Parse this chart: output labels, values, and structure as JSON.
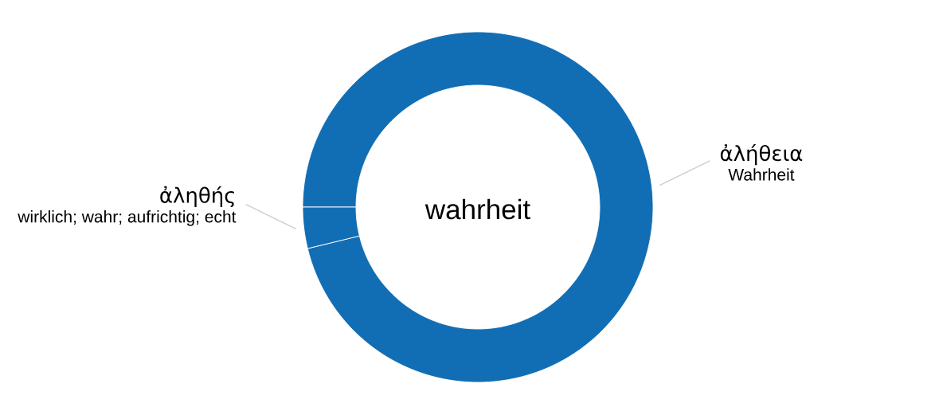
{
  "chart_data": {
    "type": "donut",
    "title": "wahrheit",
    "categories": [
      "ἀλήθεια",
      "ἀληθής"
    ],
    "values": [
      96.2,
      3.8
    ],
    "colors": [
      "#126eb4",
      "#126eb4"
    ],
    "annotations": [
      "Wahrheit",
      "wirklich; wahr; aufrichtig; echt"
    ]
  }
}
